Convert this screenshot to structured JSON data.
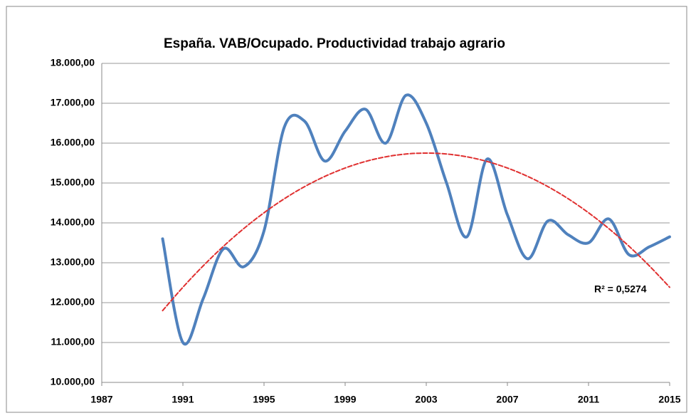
{
  "chart_data": {
    "type": "line",
    "title": "España. VAB/Ocupado. Productividad trabajo agrario",
    "x": [
      1990,
      1991,
      1992,
      1993,
      1994,
      1995,
      1996,
      1997,
      1998,
      1999,
      2000,
      2001,
      2002,
      2003,
      2004,
      2005,
      2006,
      2007,
      2008,
      2009,
      2010,
      2011,
      2012,
      2013,
      2014,
      2015
    ],
    "series": [
      {
        "color": "#4f81bd",
        "values": [
          13600,
          11000,
          12100,
          13350,
          12900,
          13800,
          16400,
          16550,
          15550,
          16300,
          16850,
          16000,
          17200,
          16500,
          15000,
          13650,
          15600,
          14200,
          13100,
          14050,
          13700,
          13500,
          14100,
          13200,
          13400,
          13650
        ]
      },
      {
        "color": "#e03030",
        "dashed": true,
        "values": [
          11800,
          12385,
          12922,
          13413,
          13857,
          14254,
          14605,
          14909,
          15166,
          15376,
          15540,
          15657,
          15727,
          15750,
          15727,
          15657,
          15540,
          15376,
          15166,
          14909,
          14605,
          14254,
          13857,
          13413,
          12922,
          12385
        ]
      }
    ],
    "annotations": [
      "R² = 0,5274"
    ],
    "xlim": [
      1987,
      2015
    ],
    "xticks": [
      1987,
      1991,
      1995,
      1999,
      2003,
      2007,
      2011,
      2015
    ],
    "ylim": [
      10000,
      18000
    ],
    "yticks": [
      {
        "value": 10000,
        "label": "10.000,00"
      },
      {
        "value": 11000,
        "label": "11.000,00"
      },
      {
        "value": 12000,
        "label": "12.000,00"
      },
      {
        "value": 13000,
        "label": "13.000,00"
      },
      {
        "value": 14000,
        "label": "14.000,00"
      },
      {
        "value": 15000,
        "label": "15.000,00"
      },
      {
        "value": 16000,
        "label": "16.000,00"
      },
      {
        "value": 17000,
        "label": "17.000,00"
      },
      {
        "value": 18000,
        "label": "18.000,00"
      }
    ],
    "grid": true
  }
}
